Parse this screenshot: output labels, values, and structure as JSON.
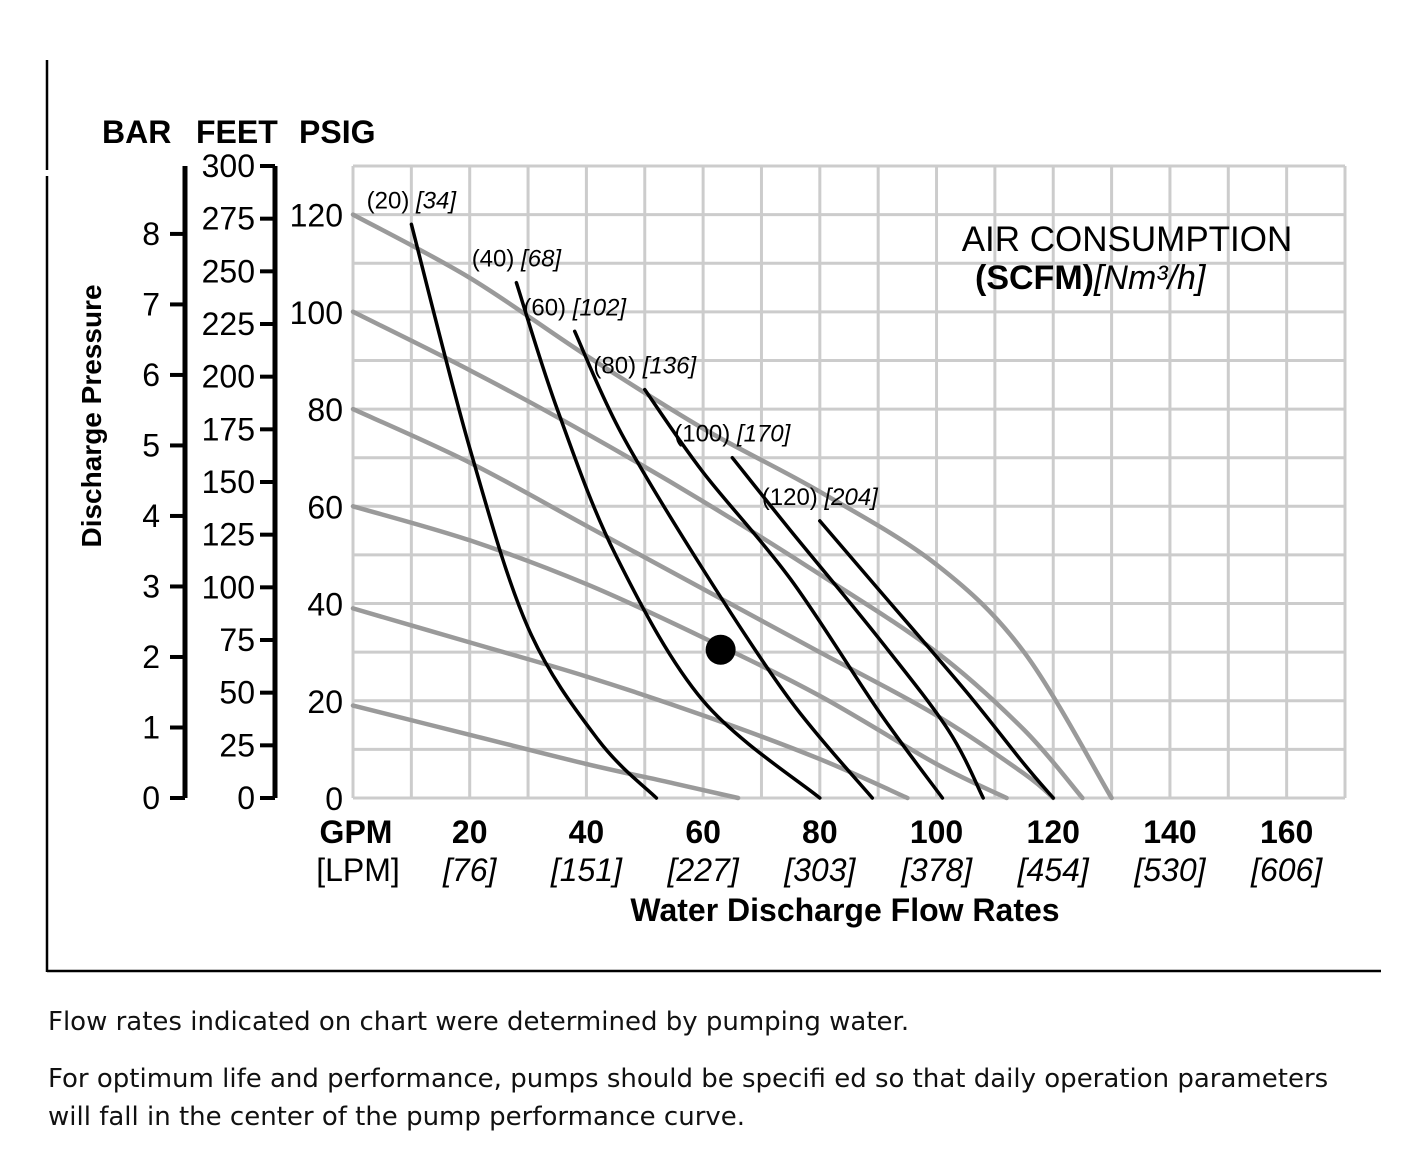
{
  "chart_data": {
    "type": "line",
    "title": "",
    "units_header": [
      "BAR",
      "FEET",
      "PSIG"
    ],
    "ylabel": "Discharge Pressure",
    "xlabel": "Water Discharge Flow Rates",
    "x_unit_primary": "GPM",
    "x_unit_secondary": "[LPM]",
    "x_ticks": [
      {
        "gpm": "20",
        "lpm": "[76]"
      },
      {
        "gpm": "40",
        "lpm": "[151]"
      },
      {
        "gpm": "60",
        "lpm": "[227]"
      },
      {
        "gpm": "80",
        "lpm": "[303]"
      },
      {
        "gpm": "100",
        "lpm": "[378]"
      },
      {
        "gpm": "120",
        "lpm": "[454]"
      },
      {
        "gpm": "140",
        "lpm": "[530]"
      },
      {
        "gpm": "160",
        "lpm": "[606]"
      }
    ],
    "xlim": [
      0,
      170
    ],
    "ylim_psig": [
      0,
      130
    ],
    "axis_bar_ticks": [
      "0",
      "1",
      "2",
      "3",
      "4",
      "5",
      "6",
      "7",
      "8"
    ],
    "axis_feet_ticks": [
      "0",
      "25",
      "50",
      "75",
      "100",
      "125",
      "150",
      "175",
      "200",
      "225",
      "250",
      "275",
      "300"
    ],
    "axis_psig_ticks": [
      "0",
      "20",
      "40",
      "60",
      "80",
      "100",
      "120"
    ],
    "air_consumption_title": "AIR CONSUMPTION",
    "air_consumption_unit_bold": "(SCFM)",
    "air_consumption_unit_italic": "[Nm³/h]",
    "grid": true,
    "legend": "none",
    "colors": {
      "pressure_curve": "#9a9a9a",
      "air_curve": "#000000",
      "grid": "#cccccc"
    },
    "pressure_curves": [
      {
        "points": [
          [
            0,
            120
          ],
          [
            20,
            107
          ],
          [
            40,
            91
          ],
          [
            60,
            76
          ],
          [
            80,
            63
          ],
          [
            100,
            48
          ],
          [
            115,
            30
          ],
          [
            130,
            0
          ]
        ]
      },
      {
        "points": [
          [
            0,
            100
          ],
          [
            20,
            88
          ],
          [
            40,
            75
          ],
          [
            60,
            61
          ],
          [
            80,
            46
          ],
          [
            100,
            30
          ],
          [
            115,
            14
          ],
          [
            125,
            0
          ]
        ]
      },
      {
        "points": [
          [
            0,
            80
          ],
          [
            20,
            69
          ],
          [
            40,
            56
          ],
          [
            60,
            43
          ],
          [
            80,
            30
          ],
          [
            100,
            17
          ],
          [
            115,
            5
          ],
          [
            120,
            0
          ]
        ]
      },
      {
        "points": [
          [
            0,
            60
          ],
          [
            20,
            53
          ],
          [
            40,
            44
          ],
          [
            60,
            33
          ],
          [
            80,
            21
          ],
          [
            100,
            7
          ],
          [
            112,
            0
          ]
        ]
      },
      {
        "points": [
          [
            0,
            39
          ],
          [
            20,
            32
          ],
          [
            40,
            25
          ],
          [
            60,
            17
          ],
          [
            80,
            8
          ],
          [
            95,
            0
          ]
        ]
      },
      {
        "points": [
          [
            0,
            19
          ],
          [
            20,
            13
          ],
          [
            40,
            7
          ],
          [
            55,
            3
          ],
          [
            66,
            0
          ]
        ]
      }
    ],
    "air_curves": [
      {
        "label_scfm": "(20)",
        "label_nm3h": "[34]",
        "points": [
          [
            10,
            118
          ],
          [
            20,
            72
          ],
          [
            30,
            35
          ],
          [
            42,
            12
          ],
          [
            52,
            0
          ]
        ]
      },
      {
        "label_scfm": "(40)",
        "label_nm3h": "[68]",
        "points": [
          [
            28,
            106
          ],
          [
            35,
            80
          ],
          [
            45,
            50
          ],
          [
            60,
            20
          ],
          [
            80,
            0
          ]
        ]
      },
      {
        "label_scfm": "(60)",
        "label_nm3h": "[102]",
        "points": [
          [
            38,
            96
          ],
          [
            46,
            75
          ],
          [
            60,
            47
          ],
          [
            75,
            20
          ],
          [
            89,
            0
          ]
        ]
      },
      {
        "label_scfm": "(80)",
        "label_nm3h": "[136]",
        "points": [
          [
            50,
            84
          ],
          [
            60,
            67
          ],
          [
            75,
            45
          ],
          [
            90,
            18
          ],
          [
            101,
            0
          ]
        ]
      },
      {
        "label_scfm": "(100)",
        "label_nm3h": "[170]",
        "points": [
          [
            65,
            70
          ],
          [
            75,
            55
          ],
          [
            90,
            33
          ],
          [
            102,
            14
          ],
          [
            108,
            0
          ]
        ]
      },
      {
        "label_scfm": "(120)",
        "label_nm3h": "[204]",
        "points": [
          [
            80,
            57
          ],
          [
            90,
            43
          ],
          [
            105,
            22
          ],
          [
            115,
            7
          ],
          [
            120,
            0
          ]
        ]
      }
    ],
    "marker_point": {
      "x": 63,
      "y": 30.5
    }
  },
  "notes": [
    "Flow rates indicated on chart were determined by pumping water.",
    "For optimum life and performance, pumps should be specifi ed so that daily operation parameters will fall in the center of the pump performance curve."
  ]
}
